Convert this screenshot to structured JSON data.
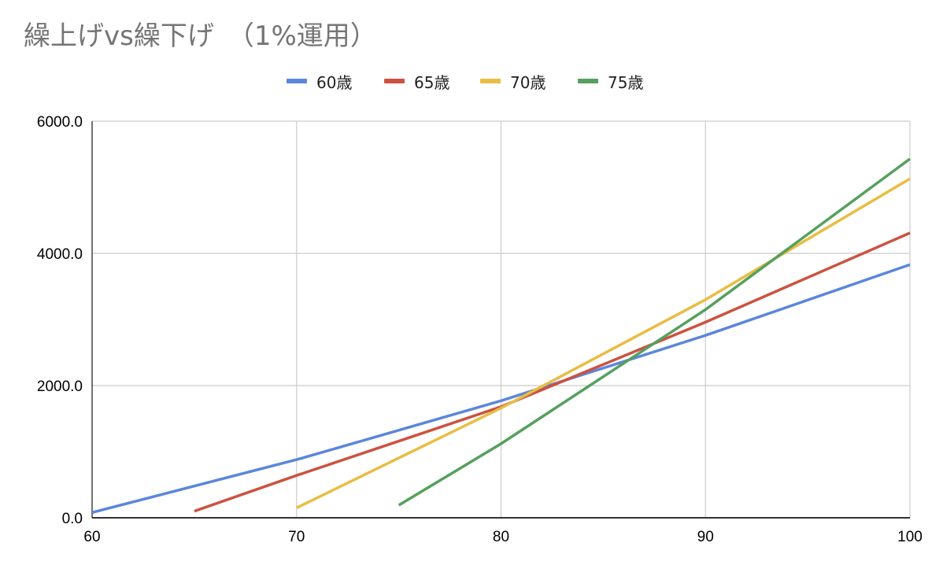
{
  "chart_data": {
    "type": "line",
    "title": "繰上げvs繰下げ　（1%運用）",
    "xlabel": "",
    "ylabel": "",
    "xlim": [
      60,
      100
    ],
    "ylim": [
      0,
      6000
    ],
    "x_ticks": [
      "60",
      "70",
      "80",
      "90",
      "100"
    ],
    "y_ticks": [
      "0.0",
      "2000.0",
      "4000.0",
      "6000.0"
    ],
    "grid": true,
    "legend_position": "top",
    "series": [
      {
        "name": "60歳",
        "color": "#5b86dc",
        "points": [
          [
            60,
            80
          ],
          [
            70,
            880
          ],
          [
            80,
            1770
          ],
          [
            90,
            2760
          ],
          [
            100,
            3830
          ]
        ]
      },
      {
        "name": "65歳",
        "color": "#cc5240",
        "points": [
          [
            65,
            100
          ],
          [
            70,
            640
          ],
          [
            80,
            1680
          ],
          [
            90,
            2960
          ],
          [
            100,
            4310
          ]
        ]
      },
      {
        "name": "70歳",
        "color": "#e8bd43",
        "points": [
          [
            70,
            150
          ],
          [
            80,
            1660
          ],
          [
            90,
            3300
          ],
          [
            100,
            5130
          ]
        ]
      },
      {
        "name": "75歳",
        "color": "#55a05e",
        "points": [
          [
            75,
            190
          ],
          [
            80,
            1120
          ],
          [
            90,
            3150
          ],
          [
            100,
            5430
          ]
        ]
      }
    ]
  }
}
